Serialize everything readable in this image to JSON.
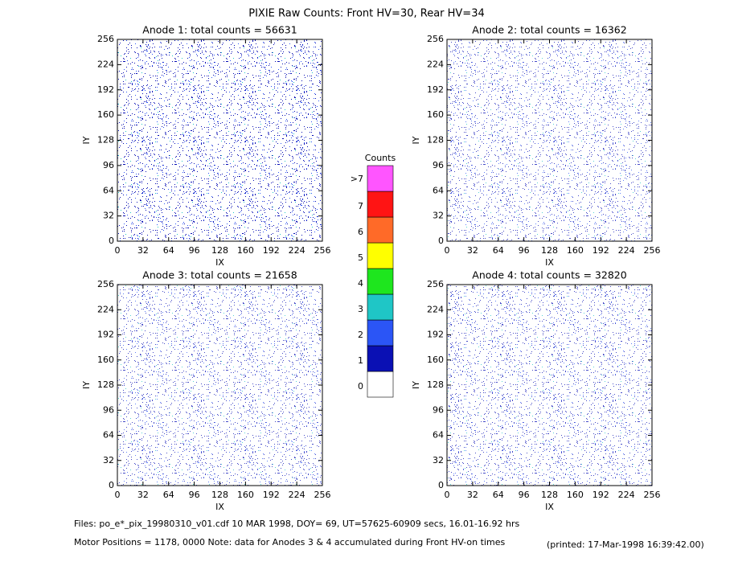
{
  "title": "PIXIE Raw Counts:  Front HV=30, Rear HV=34",
  "footer": {
    "files": "Files: po_e*_pix_19980310_v01.cdf    10 MAR 1998, DOY= 69, UT=57625-60909 secs, 16.01-16.92 hrs",
    "motor": "Motor Positions = 1178, 0000    Note: data for Anodes 3 & 4 accumulated during Front HV-on times",
    "printed": "(printed: 17-Mar-1998 16:39:42.00)"
  },
  "colorbar": {
    "title": "Counts",
    "ticks": [
      0,
      1,
      2,
      3,
      4,
      5,
      6,
      7,
      {
        "value": 8,
        "label": ">7"
      }
    ],
    "colors": [
      "#ffffff",
      "#0a10b4",
      "#2b55f6",
      "#1fc6c6",
      "#1ee61e",
      "#ffff00",
      "#ff6a28",
      "#ff1414",
      "#ff55ff"
    ]
  },
  "chart_data": [
    {
      "type": "heatmap",
      "title": "Anode 1: total counts = 56631",
      "xlabel": "IX",
      "ylabel": "IY",
      "xlim": [
        0,
        256
      ],
      "ylim": [
        0,
        256
      ],
      "xticks": [
        0,
        32,
        64,
        96,
        128,
        160,
        192,
        224,
        256
      ],
      "yticks": [
        0,
        32,
        64,
        96,
        128,
        160,
        192,
        224,
        256
      ]
    },
    {
      "type": "heatmap",
      "title": "Anode 2: total counts = 16362",
      "xlabel": "IX",
      "ylabel": "IY",
      "xlim": [
        0,
        256
      ],
      "ylim": [
        0,
        256
      ],
      "xticks": [
        0,
        32,
        64,
        96,
        128,
        160,
        192,
        224,
        256
      ],
      "yticks": [
        0,
        32,
        64,
        96,
        128,
        160,
        192,
        224,
        256
      ]
    },
    {
      "type": "heatmap",
      "title": "Anode 3: total counts = 21658",
      "xlabel": "IX",
      "ylabel": "IY",
      "xlim": [
        0,
        256
      ],
      "ylim": [
        0,
        256
      ],
      "xticks": [
        0,
        32,
        64,
        96,
        128,
        160,
        192,
        224,
        256
      ],
      "yticks": [
        0,
        32,
        64,
        96,
        128,
        160,
        192,
        224,
        256
      ]
    },
    {
      "type": "heatmap",
      "title": "Anode 4: total counts = 32820",
      "xlabel": "IX",
      "ylabel": "IY",
      "xlim": [
        0,
        256
      ],
      "ylim": [
        0,
        256
      ],
      "xticks": [
        0,
        32,
        64,
        96,
        128,
        160,
        192,
        224,
        256
      ],
      "yticks": [
        0,
        32,
        64,
        96,
        128,
        160,
        192,
        224,
        256
      ]
    }
  ]
}
